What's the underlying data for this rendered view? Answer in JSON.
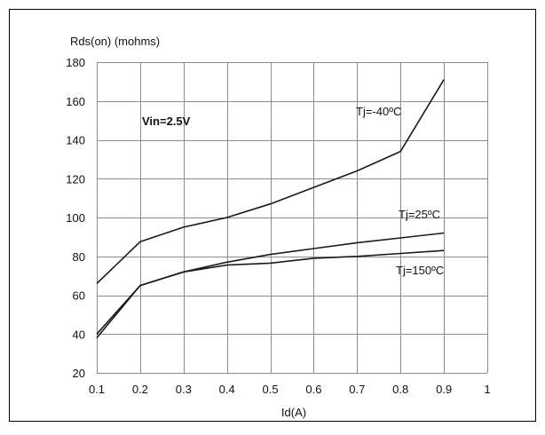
{
  "chart_data": {
    "type": "line",
    "title": "",
    "ylabel": "Rds(on) (mohms)",
    "xlabel": "Id(A)",
    "xlim": [
      0.1,
      1.0
    ],
    "ylim": [
      20,
      180
    ],
    "x_ticks": [
      0.1,
      0.2,
      0.3,
      0.4,
      0.5,
      0.6,
      0.7,
      0.8,
      0.9,
      1
    ],
    "x_tick_labels": [
      "0.1",
      "0.2",
      "0.3",
      "0.4",
      "0.5",
      "0.6",
      "0.7",
      "0.8",
      "0.9",
      "1"
    ],
    "y_ticks": [
      20,
      40,
      60,
      80,
      100,
      120,
      140,
      160,
      180
    ],
    "y_tick_labels": [
      "20",
      "40",
      "60",
      "80",
      "100",
      "120",
      "140",
      "160",
      "180"
    ],
    "grid": true,
    "annotation": "Vin=2.5V",
    "series": [
      {
        "name": "Tj=-40ºC",
        "x": [
          0.1,
          0.2,
          0.3,
          0.4,
          0.5,
          0.6,
          0.7,
          0.8,
          0.9
        ],
        "y": [
          66,
          87.5,
          95,
          100,
          107,
          115.5,
          124,
          134,
          171
        ]
      },
      {
        "name": "Tj=25ºC",
        "x": [
          0.1,
          0.2,
          0.3,
          0.4,
          0.5,
          0.6,
          0.7,
          0.8,
          0.9
        ],
        "y": [
          40,
          65,
          72,
          77,
          81,
          84,
          87,
          89.5,
          92
        ]
      },
      {
        "name": "Tj=150ºC",
        "x": [
          0.1,
          0.2,
          0.3,
          0.4,
          0.5,
          0.6,
          0.7,
          0.8,
          0.9
        ],
        "y": [
          38,
          65,
          72,
          75.5,
          76.5,
          79,
          80,
          81.5,
          83
        ]
      }
    ]
  },
  "colors": {
    "line": "#1a1a1a",
    "grid": "#8c8c8c",
    "frame": "#000000"
  }
}
